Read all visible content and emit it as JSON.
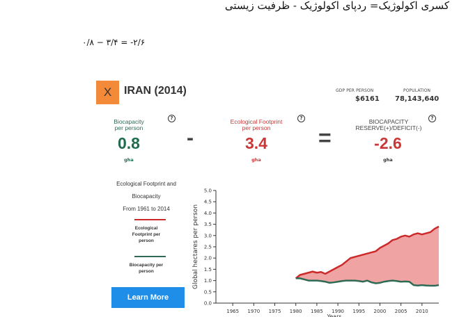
{
  "article": {
    "line1": "کسری اکولوژیک= ردپای اکولوژیک - ظرفیت زیستی",
    "line2": "۰/۸ − ۳/۴ = -۲/۶"
  },
  "card": {
    "close_label": "X",
    "country_title": "IRAN (2014)",
    "gdp_label": "GDP PER PERSON",
    "gdp_value": "$6161",
    "population_label": "POPULATION",
    "population_value": "78,143,640",
    "help_glyph": "?",
    "biocapacity": {
      "label_line1": "Biocapacity",
      "label_line2": "per person",
      "value": "0.8",
      "unit": "gha"
    },
    "footprint": {
      "label_line1": "Ecological Footprint",
      "label_line2": "per person",
      "value": "3.4",
      "unit": "gha"
    },
    "reserve": {
      "label_line1": "BIOCAPACITY",
      "label_line2": "RESERVE(+)/DEFICIT(-)",
      "value": "-2.6",
      "unit": "gha"
    },
    "minus_sign": "-",
    "equals_sign": "=",
    "legend": {
      "title_line1": "Ecological Footprint and",
      "title_line2": "Biocapacity",
      "title_line3": "From 1961 to 2014",
      "footprint_line1": "Ecological",
      "footprint_line2": "Footprint per",
      "footprint_line3": "person",
      "biocap_line1": "Biocapacity per",
      "biocap_line2": "person"
    },
    "learn_more_label": "Learn More",
    "colors": {
      "footprint": "#cc2a2a",
      "footprint_fill": "#f0a3a3",
      "biocapacity": "#2d6b55",
      "accent": "#f28a3a",
      "button": "#1f8ee8"
    }
  },
  "chart_data": {
    "type": "area",
    "ylabel": "Global hectares per person",
    "xlabel": "Years",
    "ylim": [
      0,
      5.0
    ],
    "xlim": [
      1961,
      2014
    ],
    "yticks": [
      "0.0",
      "0.5",
      "1.0",
      "1.5",
      "2.0",
      "2.5",
      "3.0",
      "3.5",
      "4.0",
      "4.5",
      "5.0"
    ],
    "xticks": [
      "1965",
      "1970",
      "1975",
      "1980",
      "1985",
      "1990",
      "1995",
      "2000",
      "2005",
      "2010"
    ],
    "x": [
      1980,
      1981,
      1982,
      1983,
      1984,
      1985,
      1986,
      1987,
      1988,
      1989,
      1990,
      1991,
      1992,
      1993,
      1994,
      1995,
      1996,
      1997,
      1998,
      1999,
      2000,
      2001,
      2002,
      2003,
      2004,
      2005,
      2006,
      2007,
      2008,
      2009,
      2010,
      2011,
      2012,
      2013,
      2014
    ],
    "series": [
      {
        "name": "Ecological Footprint per person",
        "values": [
          1.1,
          1.25,
          1.3,
          1.35,
          1.4,
          1.35,
          1.38,
          1.3,
          1.4,
          1.5,
          1.6,
          1.7,
          1.85,
          2.0,
          2.05,
          2.1,
          2.15,
          2.2,
          2.25,
          2.3,
          2.45,
          2.55,
          2.65,
          2.8,
          2.85,
          2.95,
          3.0,
          2.95,
          3.05,
          3.1,
          3.05,
          3.1,
          3.15,
          3.3,
          3.4
        ]
      },
      {
        "name": "Biocapacity per person",
        "values": [
          1.1,
          1.1,
          1.05,
          1.0,
          1.0,
          1.0,
          0.98,
          0.95,
          0.9,
          0.92,
          0.95,
          0.98,
          1.0,
          1.0,
          1.0,
          0.98,
          0.95,
          1.0,
          0.92,
          0.88,
          0.9,
          0.95,
          0.98,
          1.0,
          0.98,
          0.95,
          0.96,
          0.95,
          0.8,
          0.78,
          0.8,
          0.78,
          0.77,
          0.77,
          0.8
        ]
      }
    ]
  }
}
